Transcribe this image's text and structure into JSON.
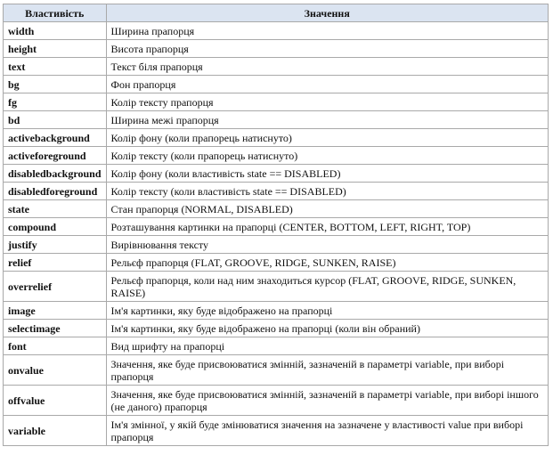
{
  "table": {
    "headers": [
      "Властивість",
      "Значення"
    ],
    "header_bg": "#dbe4f1",
    "rows": [
      {
        "property": "width",
        "value": "Ширина прапорця"
      },
      {
        "property": "height",
        "value": "Висота прапорця"
      },
      {
        "property": "text",
        "value": "Текст біля прапорця"
      },
      {
        "property": "bg",
        "value": "Фон прапорця"
      },
      {
        "property": "fg",
        "value": "Колір тексту прапорця"
      },
      {
        "property": "bd",
        "value": "Ширина межі прапорця"
      },
      {
        "property": "activebackground",
        "value": "Колір фону (коли прапорець натиснуто)"
      },
      {
        "property": "activeforeground",
        "value": "Колір тексту (коли прапорець натиснуто)"
      },
      {
        "property": "disabledbackground",
        "value": "Колір фону (коли властивість state == DISABLED)"
      },
      {
        "property": "disabledforeground",
        "value": "Колір тексту (коли властивість state == DISABLED)"
      },
      {
        "property": "state",
        "value": "Стан прапорця (NORMAL, DISABLED)"
      },
      {
        "property": "compound",
        "value": "Розташування картинки на прапорці (CENTER, BOTTOM, LEFT, RIGHT, TOP)"
      },
      {
        "property": "justify",
        "value": "Вирівнювання тексту"
      },
      {
        "property": "relief",
        "value": "Рельєф прапорця (FLAT, GROOVE, RIDGE, SUNKEN, RAISE)"
      },
      {
        "property": "overrelief",
        "value": "Рельєф прапорця, коли над ним знаходиться курсор (FLAT, GROOVE, RIDGE, SUNKEN, RAISE)"
      },
      {
        "property": "image",
        "value": "Ім'я картинки, яку буде відображено на прапорці"
      },
      {
        "property": "selectimage",
        "value": "Ім'я картинки, яку буде відображено на прапорці (коли він обраний)"
      },
      {
        "property": "font",
        "value": "Вид шрифту на прапорці"
      },
      {
        "property": "onvalue",
        "value": "Значення, яке буде присвоюватися змінній, зазначеній в параметрі variable, при виборі прапорця"
      },
      {
        "property": "offvalue",
        "value": "Значення, яке буде присвоюватися змінній, зазначеній в параметрі variable, при виборі іншого (не даного) прапорця"
      },
      {
        "property": "variable",
        "value": "Ім'я змінної, у якій буде змінюватися значення на зазначене у властивості value при виборі прапорця"
      }
    ]
  }
}
